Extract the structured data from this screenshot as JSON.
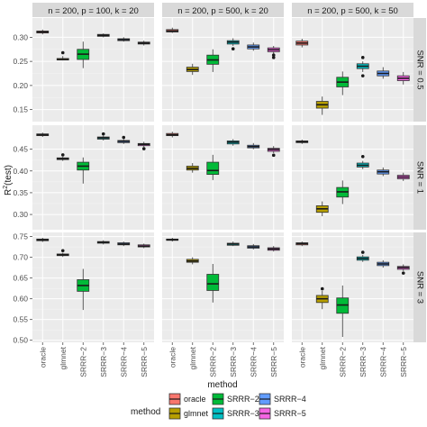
{
  "chart_data": {
    "type": "boxplot",
    "title": "",
    "xlabel": "method",
    "ylabel": "R²(test)",
    "ylabel_main": "R",
    "ylabel_sup": "2",
    "ylabel_rest": "(test)",
    "categories": [
      "oracle",
      "glmnet",
      "SRRR−2",
      "SRRR−3",
      "SRRR−4",
      "SRRR−5"
    ],
    "colors": {
      "oracle": "#F8766D",
      "glmnet": "#B79F00",
      "SRRR−2": "#00BA38",
      "SRRR−3": "#00BFC4",
      "SRRR−4": "#619CFF",
      "SRRR−5": "#F564E3"
    },
    "col_facets": [
      "n = 200, p = 100, k = 20",
      "n = 200, p = 500, k = 20",
      "n = 200, p = 500, k = 50"
    ],
    "row_facets": [
      {
        "label": "SNR = 0.5",
        "ylim": [
          0.125,
          0.34
        ],
        "ticks": [
          0.15,
          0.2,
          0.25,
          0.3
        ],
        "tick_labels": [
          "0.15",
          "0.20",
          "0.25",
          "0.30"
        ]
      },
      {
        "label": "SNR = 1",
        "ylim": [
          0.265,
          0.505
        ],
        "ticks": [
          0.3,
          0.35,
          0.4,
          0.45
        ],
        "tick_labels": [
          "0.30",
          "0.35",
          "0.40",
          "0.45"
        ]
      },
      {
        "label": "SNR = 3",
        "ylim": [
          0.495,
          0.76
        ],
        "ticks": [
          0.5,
          0.55,
          0.6,
          0.65,
          0.7,
          0.75
        ],
        "tick_labels": [
          "0.50",
          "0.55",
          "0.60",
          "0.65",
          "0.70",
          "0.75"
        ]
      }
    ],
    "panels": [
      [
        [
          {
            "min": 0.306,
            "q1": 0.309,
            "median": 0.311,
            "q3": 0.313,
            "max": 0.316,
            "outliers": []
          },
          {
            "min": 0.252,
            "q1": 0.253,
            "median": 0.254,
            "q3": 0.256,
            "max": 0.261,
            "outliers": [
              0.268
            ]
          },
          {
            "min": 0.236,
            "q1": 0.254,
            "median": 0.265,
            "q3": 0.275,
            "max": 0.291,
            "outliers": []
          },
          {
            "min": 0.3,
            "q1": 0.302,
            "median": 0.304,
            "q3": 0.306,
            "max": 0.308,
            "outliers": []
          },
          {
            "min": 0.291,
            "q1": 0.293,
            "median": 0.295,
            "q3": 0.297,
            "max": 0.3,
            "outliers": []
          },
          {
            "min": 0.283,
            "q1": 0.286,
            "median": 0.288,
            "q3": 0.29,
            "max": 0.293,
            "outliers": []
          }
        ],
        [
          {
            "min": 0.309,
            "q1": 0.311,
            "median": 0.313,
            "q3": 0.316,
            "max": 0.32,
            "outliers": []
          },
          {
            "min": 0.222,
            "q1": 0.229,
            "median": 0.233,
            "q3": 0.238,
            "max": 0.245,
            "outliers": []
          },
          {
            "min": 0.228,
            "q1": 0.244,
            "median": 0.253,
            "q3": 0.263,
            "max": 0.275,
            "outliers": []
          },
          {
            "min": 0.282,
            "q1": 0.286,
            "median": 0.29,
            "q3": 0.293,
            "max": 0.298,
            "outliers": [
              0.276
            ]
          },
          {
            "min": 0.272,
            "q1": 0.276,
            "median": 0.28,
            "q3": 0.284,
            "max": 0.289,
            "outliers": []
          },
          {
            "min": 0.265,
            "q1": 0.27,
            "median": 0.274,
            "q3": 0.278,
            "max": 0.282,
            "outliers": [
              0.258,
              0.263
            ]
          }
        ],
        [
          {
            "min": 0.279,
            "q1": 0.284,
            "median": 0.288,
            "q3": 0.292,
            "max": 0.297,
            "outliers": []
          },
          {
            "min": 0.139,
            "q1": 0.153,
            "median": 0.16,
            "q3": 0.167,
            "max": 0.177,
            "outliers": []
          },
          {
            "min": 0.18,
            "q1": 0.197,
            "median": 0.207,
            "q3": 0.217,
            "max": 0.229,
            "outliers": []
          },
          {
            "min": 0.228,
            "q1": 0.235,
            "median": 0.24,
            "q3": 0.245,
            "max": 0.25,
            "outliers": [
              0.22,
              0.258
            ]
          },
          {
            "min": 0.214,
            "q1": 0.22,
            "median": 0.225,
            "q3": 0.23,
            "max": 0.238,
            "outliers": []
          },
          {
            "min": 0.202,
            "q1": 0.21,
            "median": 0.215,
            "q3": 0.22,
            "max": 0.228,
            "outliers": []
          }
        ]
      ],
      [
        [
          {
            "min": 0.478,
            "q1": 0.481,
            "median": 0.483,
            "q3": 0.485,
            "max": 0.488,
            "outliers": []
          },
          {
            "min": 0.423,
            "q1": 0.426,
            "median": 0.428,
            "q3": 0.43,
            "max": 0.433,
            "outliers": [
              0.437
            ]
          },
          {
            "min": 0.371,
            "q1": 0.402,
            "median": 0.411,
            "q3": 0.42,
            "max": 0.431,
            "outliers": []
          },
          {
            "min": 0.47,
            "q1": 0.473,
            "median": 0.476,
            "q3": 0.478,
            "max": 0.481,
            "outliers": [
              0.485
            ]
          },
          {
            "min": 0.462,
            "q1": 0.465,
            "median": 0.468,
            "q3": 0.47,
            "max": 0.473,
            "outliers": [
              0.477
            ]
          },
          {
            "min": 0.455,
            "q1": 0.458,
            "median": 0.461,
            "q3": 0.463,
            "max": 0.467,
            "outliers": [
              0.451
            ]
          }
        ],
        [
          {
            "min": 0.477,
            "q1": 0.481,
            "median": 0.483,
            "q3": 0.486,
            "max": 0.49,
            "outliers": []
          },
          {
            "min": 0.396,
            "q1": 0.402,
            "median": 0.406,
            "q3": 0.411,
            "max": 0.418,
            "outliers": []
          },
          {
            "min": 0.379,
            "q1": 0.392,
            "median": 0.401,
            "q3": 0.42,
            "max": 0.437,
            "outliers": []
          },
          {
            "min": 0.458,
            "q1": 0.462,
            "median": 0.466,
            "q3": 0.469,
            "max": 0.473,
            "outliers": []
          },
          {
            "min": 0.45,
            "q1": 0.453,
            "median": 0.456,
            "q3": 0.459,
            "max": 0.464,
            "outliers": []
          },
          {
            "min": 0.441,
            "q1": 0.445,
            "median": 0.449,
            "q3": 0.452,
            "max": 0.457,
            "outliers": [
              0.436
            ]
          }
        ],
        [
          {
            "min": 0.462,
            "q1": 0.465,
            "median": 0.467,
            "q3": 0.469,
            "max": 0.472,
            "outliers": []
          },
          {
            "min": 0.296,
            "q1": 0.305,
            "median": 0.313,
            "q3": 0.32,
            "max": 0.33,
            "outliers": []
          },
          {
            "min": 0.324,
            "q1": 0.34,
            "median": 0.352,
            "q3": 0.362,
            "max": 0.378,
            "outliers": []
          },
          {
            "min": 0.404,
            "q1": 0.409,
            "median": 0.413,
            "q3": 0.418,
            "max": 0.423,
            "outliers": [
              0.433
            ]
          },
          {
            "min": 0.388,
            "q1": 0.393,
            "median": 0.398,
            "q3": 0.402,
            "max": 0.408,
            "outliers": []
          },
          {
            "min": 0.377,
            "q1": 0.382,
            "median": 0.386,
            "q3": 0.39,
            "max": 0.396,
            "outliers": []
          }
        ]
      ],
      [
        [
          {
            "min": 0.737,
            "q1": 0.74,
            "median": 0.742,
            "q3": 0.744,
            "max": 0.747,
            "outliers": []
          },
          {
            "min": 0.701,
            "q1": 0.704,
            "median": 0.706,
            "q3": 0.708,
            "max": 0.711,
            "outliers": [
              0.716
            ]
          },
          {
            "min": 0.573,
            "q1": 0.618,
            "median": 0.632,
            "q3": 0.646,
            "max": 0.672,
            "outliers": []
          },
          {
            "min": 0.731,
            "q1": 0.734,
            "median": 0.736,
            "q3": 0.738,
            "max": 0.741,
            "outliers": []
          },
          {
            "min": 0.727,
            "q1": 0.73,
            "median": 0.732,
            "q3": 0.735,
            "max": 0.738,
            "outliers": []
          },
          {
            "min": 0.722,
            "q1": 0.725,
            "median": 0.727,
            "q3": 0.73,
            "max": 0.733,
            "outliers": []
          }
        ],
        [
          {
            "min": 0.738,
            "q1": 0.741,
            "median": 0.742,
            "q3": 0.744,
            "max": 0.747,
            "outliers": []
          },
          {
            "min": 0.683,
            "q1": 0.688,
            "median": 0.691,
            "q3": 0.695,
            "max": 0.7,
            "outliers": []
          },
          {
            "min": 0.591,
            "q1": 0.62,
            "median": 0.636,
            "q3": 0.659,
            "max": 0.684,
            "outliers": []
          },
          {
            "min": 0.727,
            "q1": 0.729,
            "median": 0.732,
            "q3": 0.734,
            "max": 0.738,
            "outliers": []
          },
          {
            "min": 0.719,
            "q1": 0.722,
            "median": 0.725,
            "q3": 0.728,
            "max": 0.732,
            "outliers": []
          },
          {
            "min": 0.714,
            "q1": 0.717,
            "median": 0.72,
            "q3": 0.723,
            "max": 0.727,
            "outliers": []
          }
        ],
        [
          {
            "min": 0.727,
            "q1": 0.73,
            "median": 0.733,
            "q3": 0.735,
            "max": 0.738,
            "outliers": []
          },
          {
            "min": 0.575,
            "q1": 0.591,
            "median": 0.6,
            "q3": 0.608,
            "max": 0.619,
            "outliers": [
              0.624
            ]
          },
          {
            "min": 0.508,
            "q1": 0.565,
            "median": 0.585,
            "q3": 0.602,
            "max": 0.632,
            "outliers": []
          },
          {
            "min": 0.689,
            "q1": 0.693,
            "median": 0.697,
            "q3": 0.701,
            "max": 0.706,
            "outliers": [
              0.712
            ]
          },
          {
            "min": 0.675,
            "q1": 0.68,
            "median": 0.684,
            "q3": 0.688,
            "max": 0.693,
            "outliers": []
          },
          {
            "min": 0.667,
            "q1": 0.671,
            "median": 0.675,
            "q3": 0.678,
            "max": 0.683,
            "outliers": [
              0.662
            ]
          }
        ]
      ]
    ],
    "legend": {
      "title": "method",
      "placement": "bottom",
      "entries": [
        "oracle",
        "glmnet",
        "SRRR−2",
        "SRRR−3",
        "SRRR−4",
        "SRRR−5"
      ]
    },
    "grid": true
  }
}
